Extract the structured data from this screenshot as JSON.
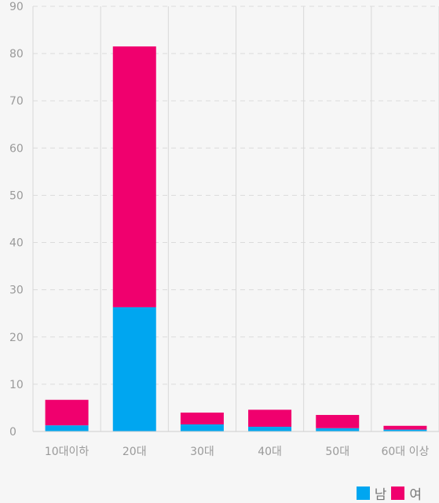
{
  "chart_data": {
    "type": "bar",
    "stacked": true,
    "categories": [
      "10대이하",
      "20대",
      "30대",
      "40대",
      "50대",
      "60대 이상"
    ],
    "series": [
      {
        "name": "남",
        "color": "#00a6f0",
        "values": [
          1.3,
          26.3,
          1.5,
          1.0,
          0.7,
          0.4
        ]
      },
      {
        "name": "여",
        "color": "#f0006e",
        "values": [
          5.4,
          55.2,
          2.5,
          3.6,
          2.8,
          0.8
        ]
      }
    ],
    "ylim": [
      0,
      90
    ],
    "yticks": [
      0,
      10,
      20,
      30,
      40,
      50,
      60,
      70,
      80,
      90
    ],
    "grid": true,
    "legend_position": "bottom-right"
  }
}
